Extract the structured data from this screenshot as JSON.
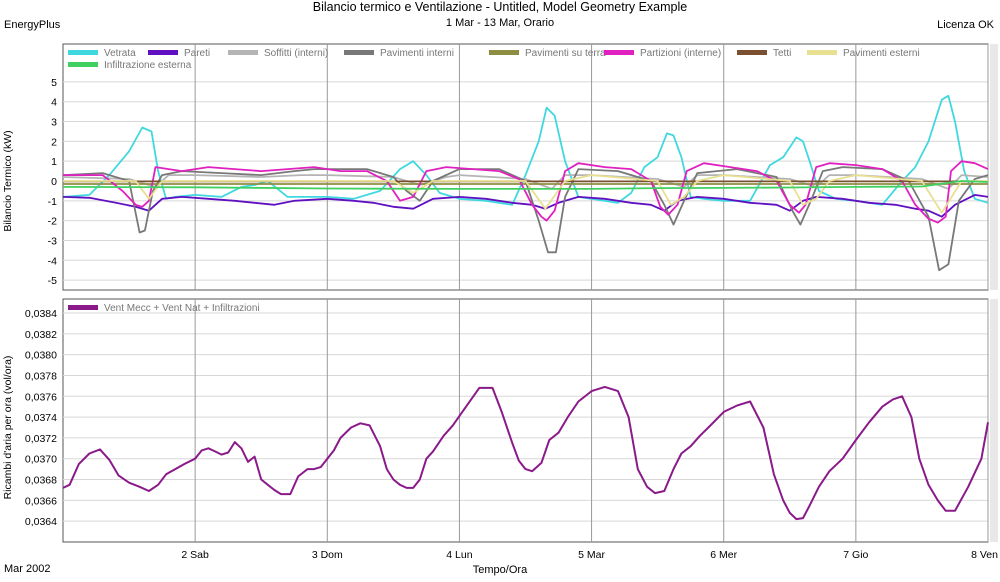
{
  "header": {
    "title": "Bilancio termico e Ventilazione - Untitled, Model Geometry Example",
    "subtitle": "1 Mar - 13 Mar, Orario",
    "app": "EnergyPlus",
    "license": "Licenza OK"
  },
  "footer": {
    "year_label": "Mar 2002",
    "x_title": "Tempo/Ora"
  },
  "x_ticks": [
    "2 Sab",
    "3 Dom",
    "4 Lun",
    "5 Mar",
    "6 Mer",
    "7 Gio",
    "8 Ven"
  ],
  "chart_data": [
    {
      "type": "line",
      "ylabel": "Bilancio Termico (kW)",
      "ylim": [
        -5.5,
        5.5
      ],
      "yticks": [
        5,
        4,
        3,
        2,
        1,
        0,
        -1,
        -2,
        -3,
        -4,
        -5
      ],
      "xlim": [
        1,
        8
      ],
      "grid": true,
      "legend": "top, horizontal",
      "series": [
        {
          "name": "Vetrata",
          "color": "#40d8e0",
          "x": [
            1.0,
            1.2,
            1.35,
            1.5,
            1.6,
            1.67,
            1.72,
            1.78,
            1.85,
            2.0,
            2.2,
            2.35,
            2.45,
            2.55,
            2.7,
            2.85,
            3.0,
            3.2,
            3.4,
            3.55,
            3.65,
            3.75,
            3.85,
            4.0,
            4.2,
            4.4,
            4.5,
            4.6,
            4.66,
            4.72,
            4.8,
            4.9,
            5.0,
            5.2,
            5.3,
            5.4,
            5.5,
            5.57,
            5.62,
            5.68,
            5.75,
            5.85,
            6.0,
            6.2,
            6.35,
            6.45,
            6.55,
            6.6,
            6.65,
            6.72,
            6.85,
            7.0,
            7.2,
            7.35,
            7.45,
            7.55,
            7.65,
            7.7,
            7.75,
            7.82,
            7.9,
            8.0
          ],
          "y": [
            -0.8,
            -0.7,
            0.3,
            1.5,
            2.7,
            2.5,
            0.5,
            -0.9,
            -0.8,
            -0.7,
            -0.8,
            -0.3,
            -0.2,
            0.0,
            -0.8,
            -0.8,
            -0.8,
            -0.9,
            -0.5,
            0.6,
            1.0,
            0.3,
            -0.6,
            -0.9,
            -1.0,
            -1.2,
            0.3,
            2.0,
            3.7,
            3.3,
            1.0,
            -0.8,
            -0.9,
            -1.1,
            -0.6,
            0.7,
            1.2,
            2.4,
            2.3,
            1.2,
            -0.8,
            -0.9,
            -1.0,
            -1.0,
            0.8,
            1.2,
            2.2,
            2.0,
            1.0,
            -0.5,
            -0.9,
            -1.0,
            -1.2,
            0.0,
            0.7,
            2.0,
            4.1,
            4.3,
            3.0,
            0.5,
            -0.9,
            -1.1
          ]
        },
        {
          "name": "Pareti",
          "color": "#6010c0",
          "x": [
            1.0,
            1.2,
            1.4,
            1.55,
            1.65,
            1.75,
            1.9,
            2.1,
            2.3,
            2.45,
            2.6,
            2.75,
            3.0,
            3.2,
            3.35,
            3.5,
            3.65,
            3.8,
            4.0,
            4.2,
            4.4,
            4.55,
            4.65,
            4.75,
            4.9,
            5.1,
            5.3,
            5.45,
            5.55,
            5.65,
            5.8,
            6.0,
            6.2,
            6.4,
            6.5,
            6.6,
            6.7,
            6.9,
            7.1,
            7.3,
            7.45,
            7.55,
            7.65,
            7.75,
            7.9,
            8.0
          ],
          "y": [
            -0.8,
            -0.85,
            -1.1,
            -1.3,
            -1.5,
            -0.9,
            -0.8,
            -0.9,
            -1.0,
            -1.1,
            -1.2,
            -1.0,
            -0.9,
            -1.0,
            -1.1,
            -1.3,
            -1.4,
            -0.9,
            -0.8,
            -0.9,
            -1.1,
            -1.2,
            -1.4,
            -1.1,
            -0.8,
            -0.9,
            -1.1,
            -1.2,
            -1.5,
            -1.0,
            -0.8,
            -0.9,
            -1.1,
            -1.2,
            -1.5,
            -1.0,
            -0.8,
            -0.9,
            -1.1,
            -1.2,
            -1.4,
            -1.5,
            -1.8,
            -1.2,
            -0.7,
            -0.8
          ]
        },
        {
          "name": "Soffitti (interni)",
          "color": "#b4b4b4",
          "x": [
            1.0,
            1.5,
            1.7,
            1.8,
            2.0,
            2.5,
            2.8,
            3.0,
            3.5,
            3.7,
            3.9,
            4.0,
            4.5,
            4.7,
            4.8,
            5.0,
            5.5,
            5.7,
            5.8,
            6.0,
            6.5,
            6.7,
            6.8,
            7.0,
            7.5,
            7.7,
            7.8,
            8.0
          ],
          "y": [
            0.2,
            0.1,
            -0.3,
            0.3,
            0.3,
            0.2,
            0.3,
            0.3,
            0.2,
            -0.2,
            0.2,
            0.3,
            0.1,
            -0.4,
            0.3,
            0.3,
            0.1,
            -0.3,
            0.3,
            0.3,
            0.1,
            -0.3,
            0.3,
            0.3,
            0.1,
            -0.4,
            0.3,
            0.2
          ]
        },
        {
          "name": "Pavimenti interni",
          "color": "#787878",
          "x": [
            1.0,
            1.3,
            1.5,
            1.58,
            1.62,
            1.68,
            1.75,
            1.9,
            2.2,
            2.5,
            2.75,
            2.9,
            3.0,
            3.3,
            3.5,
            3.6,
            3.7,
            3.8,
            4.0,
            4.3,
            4.5,
            4.6,
            4.67,
            4.73,
            4.8,
            4.9,
            5.2,
            5.45,
            5.55,
            5.62,
            5.7,
            5.8,
            6.1,
            6.4,
            6.52,
            6.58,
            6.66,
            6.75,
            6.9,
            7.2,
            7.4,
            7.55,
            7.63,
            7.7,
            7.78,
            7.9,
            8.0
          ],
          "y": [
            0.3,
            0.4,
            0.0,
            -2.6,
            -2.5,
            -0.5,
            0.3,
            0.5,
            0.4,
            0.3,
            0.5,
            0.6,
            0.6,
            0.6,
            0.2,
            -0.5,
            -1.0,
            0.0,
            0.6,
            0.6,
            0.0,
            -2.0,
            -3.6,
            -3.6,
            -0.8,
            0.6,
            0.5,
            0.0,
            -1.2,
            -2.2,
            -1.0,
            0.4,
            0.6,
            0.2,
            -1.5,
            -2.2,
            -1.0,
            0.5,
            0.7,
            0.6,
            0.0,
            -1.8,
            -4.5,
            -4.2,
            -1.0,
            0.1,
            0.3
          ]
        },
        {
          "name": "Pavimenti su terra",
          "color": "#8e8e42",
          "x": [
            1.0,
            2.0,
            3.0,
            4.0,
            5.0,
            6.0,
            7.0,
            8.0
          ],
          "y": [
            -0.15,
            -0.15,
            -0.15,
            -0.15,
            -0.15,
            -0.15,
            -0.15,
            -0.15
          ]
        },
        {
          "name": "Partizioni (interne)",
          "color": "#e020c0",
          "x": [
            1.0,
            1.3,
            1.45,
            1.55,
            1.6,
            1.65,
            1.7,
            1.8,
            1.9,
            2.1,
            2.3,
            2.5,
            2.7,
            2.9,
            3.1,
            3.3,
            3.45,
            3.55,
            3.65,
            3.75,
            3.9,
            4.1,
            4.3,
            4.45,
            4.55,
            4.62,
            4.66,
            4.72,
            4.8,
            4.9,
            5.1,
            5.3,
            5.45,
            5.52,
            5.58,
            5.65,
            5.72,
            5.85,
            6.05,
            6.25,
            6.4,
            6.5,
            6.57,
            6.62,
            6.7,
            6.8,
            7.0,
            7.2,
            7.35,
            7.45,
            7.55,
            7.62,
            7.68,
            7.72,
            7.8,
            7.9,
            8.0
          ],
          "y": [
            0.3,
            0.3,
            -0.5,
            -1.2,
            -1.3,
            -1.0,
            0.7,
            0.6,
            0.5,
            0.7,
            0.6,
            0.5,
            0.6,
            0.7,
            0.5,
            0.5,
            0.0,
            -1.0,
            -0.8,
            0.5,
            0.7,
            0.6,
            0.5,
            0.1,
            -1.2,
            -1.8,
            -2.0,
            -1.5,
            0.5,
            0.9,
            0.7,
            0.6,
            0.0,
            -1.3,
            -1.7,
            -1.2,
            0.5,
            0.9,
            0.7,
            0.5,
            0.0,
            -1.2,
            -1.6,
            -1.2,
            0.7,
            0.9,
            0.8,
            0.6,
            0.0,
            -1.2,
            -1.9,
            -2.1,
            -1.8,
            0.5,
            1.0,
            0.9,
            0.6
          ]
        },
        {
          "name": "Tetti",
          "color": "#7a5030",
          "x": [
            1.0,
            2.0,
            3.0,
            4.0,
            5.0,
            6.0,
            7.0,
            8.0
          ],
          "y": [
            -0.02,
            -0.02,
            -0.02,
            -0.02,
            -0.02,
            -0.02,
            -0.02,
            -0.02
          ]
        },
        {
          "name": "Pavimenti esterni",
          "color": "#e8e090",
          "x": [
            1.0,
            1.55,
            1.65,
            1.75,
            2.0,
            3.5,
            3.65,
            3.8,
            4.0,
            4.5,
            4.65,
            4.8,
            5.0,
            5.5,
            5.6,
            5.7,
            5.8,
            6.0,
            6.5,
            6.6,
            6.7,
            6.8,
            7.0,
            7.5,
            7.65,
            7.8,
            8.0
          ],
          "y": [
            0.0,
            0.0,
            -0.9,
            0.0,
            0.0,
            0.0,
            -0.6,
            0.0,
            0.0,
            0.0,
            -1.4,
            0.0,
            0.3,
            0.0,
            -1.2,
            -0.8,
            0.0,
            0.3,
            0.0,
            -1.2,
            -0.9,
            0.0,
            0.3,
            0.0,
            -1.6,
            0.0,
            0.0
          ]
        },
        {
          "name": "Infiltrazione esterna",
          "color": "#40d060",
          "x": [
            1.0,
            2.0,
            3.0,
            4.0,
            5.0,
            5.5,
            6.0,
            6.5,
            7.0,
            7.5,
            7.8,
            8.0
          ],
          "y": [
            -0.3,
            -0.32,
            -0.38,
            -0.4,
            -0.4,
            -0.36,
            -0.35,
            -0.33,
            -0.3,
            -0.28,
            0.0,
            -0.05
          ]
        }
      ]
    },
    {
      "type": "line",
      "ylabel": "Ricambi d'aria per ora (vol/ora)",
      "ylim": [
        0.0362,
        0.0384
      ],
      "yticks": [
        "0,0384",
        "0,0382",
        "0,0380",
        "0,0378",
        "0,0376",
        "0,0374",
        "0,0372",
        "0,0370",
        "0,0368",
        "0,0366",
        "0,0364"
      ],
      "xlim": [
        1,
        8
      ],
      "grid": true,
      "legend": "top-left",
      "series": [
        {
          "name": "Vent Mecc + Vent Nat + Infiltrazioni",
          "color": "#8a1a8a",
          "x": [
            1.0,
            1.05,
            1.12,
            1.2,
            1.28,
            1.35,
            1.42,
            1.5,
            1.58,
            1.65,
            1.72,
            1.78,
            1.85,
            1.92,
            2.0,
            2.05,
            2.1,
            2.15,
            2.2,
            2.25,
            2.3,
            2.35,
            2.4,
            2.45,
            2.5,
            2.55,
            2.6,
            2.65,
            2.72,
            2.78,
            2.85,
            2.9,
            2.95,
            3.0,
            3.05,
            3.1,
            3.18,
            3.25,
            3.32,
            3.4,
            3.45,
            3.5,
            3.55,
            3.6,
            3.65,
            3.7,
            3.75,
            3.8,
            3.88,
            3.95,
            4.05,
            4.15,
            4.25,
            4.32,
            4.4,
            4.45,
            4.5,
            4.55,
            4.62,
            4.68,
            4.75,
            4.82,
            4.9,
            5.0,
            5.1,
            5.2,
            5.28,
            5.35,
            5.42,
            5.48,
            5.55,
            5.62,
            5.68,
            5.75,
            5.82,
            5.9,
            6.0,
            6.1,
            6.2,
            6.3,
            6.38,
            6.45,
            6.5,
            6.55,
            6.6,
            6.65,
            6.72,
            6.8,
            6.9,
            7.0,
            7.1,
            7.2,
            7.28,
            7.35,
            7.42,
            7.48,
            7.55,
            7.62,
            7.68,
            7.75,
            7.85,
            7.95,
            8.0
          ],
          "y": [
            0.03672,
            0.03675,
            0.03695,
            0.03705,
            0.03709,
            0.03699,
            0.03684,
            0.03677,
            0.03673,
            0.03669,
            0.03675,
            0.03685,
            0.0369,
            0.03695,
            0.037,
            0.03708,
            0.0371,
            0.03707,
            0.03704,
            0.03706,
            0.03716,
            0.0371,
            0.03697,
            0.03702,
            0.0368,
            0.03675,
            0.0367,
            0.03666,
            0.03666,
            0.03683,
            0.0369,
            0.0369,
            0.03692,
            0.037,
            0.03708,
            0.0372,
            0.0373,
            0.03734,
            0.03732,
            0.03712,
            0.0369,
            0.0368,
            0.03675,
            0.03672,
            0.03672,
            0.0368,
            0.037,
            0.03707,
            0.03722,
            0.03732,
            0.0375,
            0.03768,
            0.03768,
            0.03745,
            0.03715,
            0.03698,
            0.0369,
            0.03688,
            0.03696,
            0.03718,
            0.03725,
            0.0374,
            0.03755,
            0.03765,
            0.03769,
            0.03765,
            0.0374,
            0.0369,
            0.03673,
            0.03667,
            0.03669,
            0.0369,
            0.03705,
            0.03712,
            0.03722,
            0.03732,
            0.03745,
            0.03751,
            0.03755,
            0.0373,
            0.03685,
            0.0366,
            0.03648,
            0.03642,
            0.03643,
            0.03655,
            0.03673,
            0.03688,
            0.037,
            0.03718,
            0.03735,
            0.0375,
            0.03757,
            0.0376,
            0.0374,
            0.037,
            0.03675,
            0.0366,
            0.0365,
            0.0365,
            0.03673,
            0.037,
            0.03735
          ]
        }
      ]
    }
  ]
}
